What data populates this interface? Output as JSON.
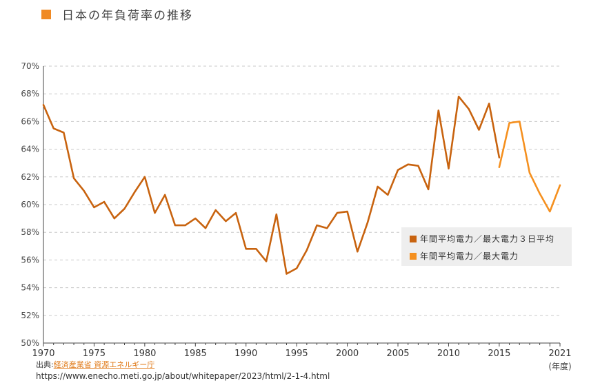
{
  "title": "日本の年負荷率の推移",
  "colors": {
    "series1": "#c8630f",
    "series2": "#f5901f",
    "accent": "#f08a24"
  },
  "source": {
    "prefix": "出典:",
    "link_text": "経済産業省  資源エネルギー庁",
    "url": "https://www.enecho.meti.go.jp/about/whitepaper/2023/html/2-1-4.html"
  },
  "chart_data": {
    "type": "line",
    "title": "日本の年負荷率の推移",
    "xlabel": "(年度)",
    "ylabel": "",
    "xlim": [
      1970,
      2021
    ],
    "ylim": [
      50,
      70
    ],
    "grid": true,
    "legend_position": "right",
    "y_ticks": [
      "50%",
      "52%",
      "54%",
      "56%",
      "58%",
      "60%",
      "62%",
      "64%",
      "66%",
      "68%",
      "70%"
    ],
    "x_ticks": [
      "1970",
      "1975",
      "1980",
      "1985",
      "1990",
      "1995",
      "2000",
      "2005",
      "2010",
      "2015",
      "2021"
    ],
    "series": [
      {
        "name": "年間平均電力／最大電力３日平均",
        "color": "#c8630f",
        "x": [
          1970,
          1971,
          1972,
          1973,
          1974,
          1975,
          1976,
          1977,
          1978,
          1979,
          1980,
          1981,
          1982,
          1983,
          1984,
          1985,
          1986,
          1987,
          1988,
          1989,
          1990,
          1991,
          1992,
          1993,
          1994,
          1995,
          1996,
          1997,
          1998,
          1999,
          2000,
          2001,
          2002,
          2003,
          2004,
          2005,
          2006,
          2007,
          2008,
          2009,
          2010,
          2011,
          2012,
          2013,
          2014,
          2015
        ],
        "values": [
          67.2,
          65.5,
          65.2,
          61.9,
          61.0,
          59.8,
          60.2,
          59.0,
          59.7,
          60.9,
          62.0,
          59.4,
          60.7,
          58.5,
          58.5,
          59.0,
          58.3,
          59.6,
          58.8,
          59.4,
          56.8,
          56.8,
          55.9,
          59.3,
          55.0,
          55.4,
          56.7,
          58.5,
          58.3,
          59.4,
          59.5,
          56.6,
          58.7,
          61.3,
          60.7,
          62.5,
          62.9,
          62.8,
          61.1,
          66.8,
          62.6,
          67.8,
          66.9,
          65.4,
          67.3,
          63.4
        ]
      },
      {
        "name": "年間平均電力／最大電力",
        "color": "#f5901f",
        "x": [
          2015,
          2016,
          2017,
          2018,
          2019,
          2020,
          2021
        ],
        "values": [
          62.7,
          65.9,
          66.0,
          62.3,
          60.8,
          59.5,
          61.4
        ]
      }
    ]
  }
}
